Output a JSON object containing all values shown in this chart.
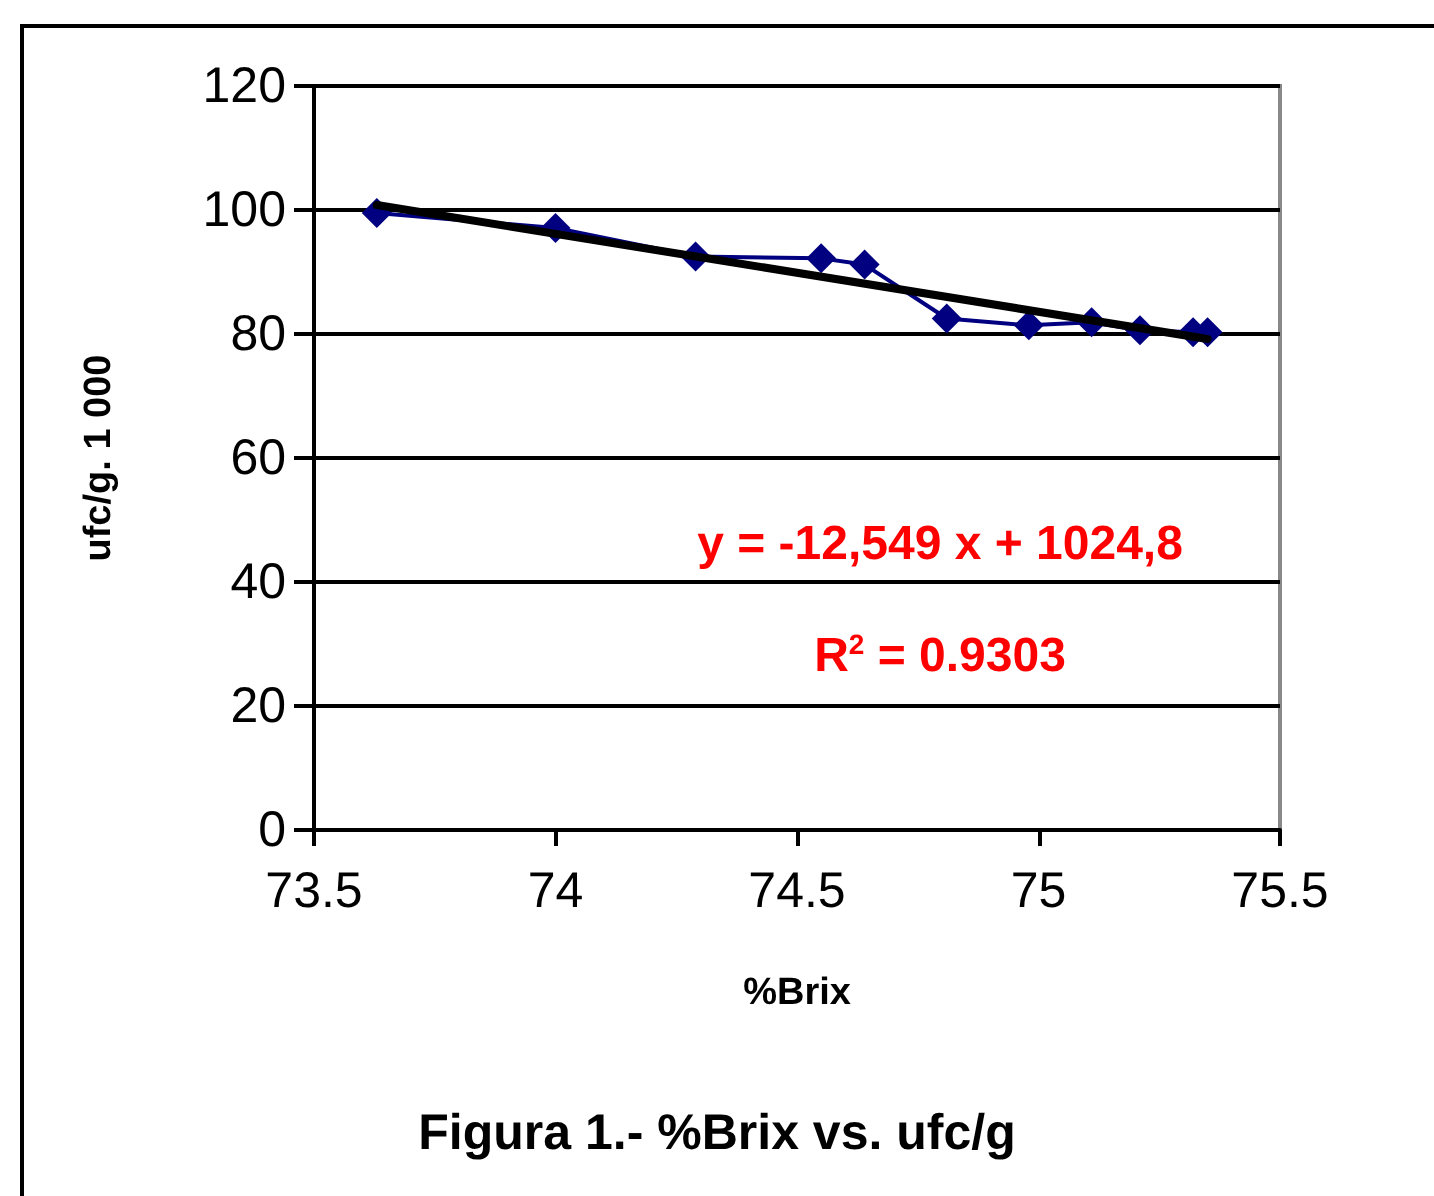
{
  "chart_data": {
    "type": "line",
    "title": "Figura 1.- %Brix vs. ufc/g",
    "xlabel": "%Brix",
    "ylabel": "ufc/g. 1 000",
    "xlim": [
      73.5,
      75.5
    ],
    "xticks": [
      73.5,
      74,
      74.5,
      75,
      75.5
    ],
    "ylim": [
      0,
      120
    ],
    "yticks": [
      0,
      20,
      40,
      60,
      80,
      100,
      120
    ],
    "grid": "y",
    "line_style": "solid",
    "series": [
      {
        "color": "#000080",
        "marker": "diamond",
        "x": [
          73.63,
          74.0,
          74.29,
          74.55,
          74.64,
          74.81,
          74.98,
          75.11,
          75.21,
          75.32,
          75.35
        ],
        "values": [
          99.5,
          97.1,
          92.5,
          92.2,
          91.2,
          82.5,
          81.4,
          81.9,
          80.6,
          80.3,
          80.3
        ]
      },
      {
        "type": "line",
        "color": "#000000",
        "marker": "none",
        "x": [
          73.63,
          75.35
        ],
        "values": [
          100.8,
          79.2
        ]
      }
    ],
    "annotations": [
      "y = -12,549 x + 1024,8",
      "R$^{2}$ = 0.9303"
    ]
  }
}
